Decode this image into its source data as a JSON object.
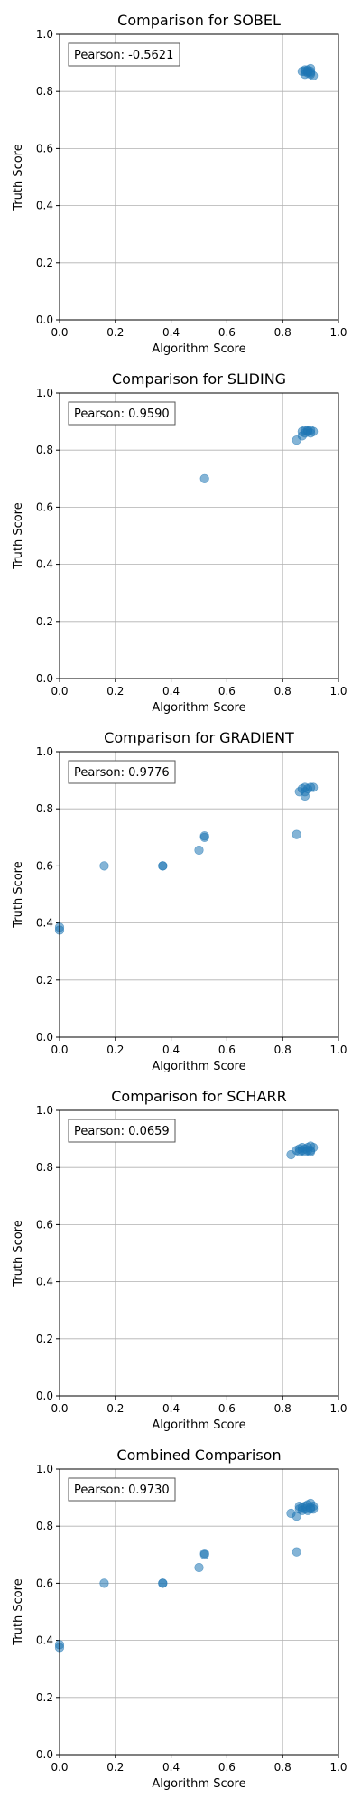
{
  "chart_data": [
    {
      "type": "scatter",
      "title": "Comparison for SOBEL",
      "xlabel": "Algorithm Score",
      "ylabel": "Truth Score",
      "xlim": [
        0,
        1
      ],
      "ylim": [
        0,
        1
      ],
      "xticks": [
        "0.0",
        "0.2",
        "0.4",
        "0.6",
        "0.8",
        "1.0"
      ],
      "yticks": [
        "0.0",
        "0.2",
        "0.4",
        "0.6",
        "0.8",
        "1.0"
      ],
      "grid": true,
      "annotation": "Pearson: -0.5621",
      "annotation_placement": "top-left",
      "point_color": "#1f77b4",
      "points": [
        {
          "x": 0.87,
          "y": 0.87
        },
        {
          "x": 0.88,
          "y": 0.875
        },
        {
          "x": 0.89,
          "y": 0.87
        },
        {
          "x": 0.9,
          "y": 0.88
        },
        {
          "x": 0.88,
          "y": 0.86
        },
        {
          "x": 0.89,
          "y": 0.865
        },
        {
          "x": 0.9,
          "y": 0.86
        },
        {
          "x": 0.91,
          "y": 0.855
        },
        {
          "x": 0.89,
          "y": 0.875
        },
        {
          "x": 0.9,
          "y": 0.87
        },
        {
          "x": 0.88,
          "y": 0.87
        },
        {
          "x": 0.9,
          "y": 0.865
        }
      ]
    },
    {
      "type": "scatter",
      "title": "Comparison for SLIDING",
      "xlabel": "Algorithm Score",
      "ylabel": "Truth Score",
      "xlim": [
        0,
        1
      ],
      "ylim": [
        0,
        1
      ],
      "xticks": [
        "0.0",
        "0.2",
        "0.4",
        "0.6",
        "0.8",
        "1.0"
      ],
      "yticks": [
        "0.0",
        "0.2",
        "0.4",
        "0.6",
        "0.8",
        "1.0"
      ],
      "grid": true,
      "annotation": "Pearson: 0.9590",
      "annotation_placement": "top-left",
      "point_color": "#1f77b4",
      "points": [
        {
          "x": 0.52,
          "y": 0.7
        },
        {
          "x": 0.85,
          "y": 0.835
        },
        {
          "x": 0.87,
          "y": 0.85
        },
        {
          "x": 0.88,
          "y": 0.87
        },
        {
          "x": 0.89,
          "y": 0.865
        },
        {
          "x": 0.9,
          "y": 0.87
        },
        {
          "x": 0.91,
          "y": 0.865
        },
        {
          "x": 0.88,
          "y": 0.86
        },
        {
          "x": 0.89,
          "y": 0.87
        },
        {
          "x": 0.9,
          "y": 0.86
        },
        {
          "x": 0.87,
          "y": 0.865
        }
      ]
    },
    {
      "type": "scatter",
      "title": "Comparison for GRADIENT",
      "xlabel": "Algorithm Score",
      "ylabel": "Truth Score",
      "xlim": [
        0,
        1
      ],
      "ylim": [
        0,
        1
      ],
      "xticks": [
        "0.0",
        "0.2",
        "0.4",
        "0.6",
        "0.8",
        "1.0"
      ],
      "yticks": [
        "0.0",
        "0.2",
        "0.4",
        "0.6",
        "0.8",
        "1.0"
      ],
      "grid": true,
      "annotation": "Pearson: 0.9776",
      "annotation_placement": "top-left",
      "point_color": "#1f77b4",
      "points": [
        {
          "x": 0.0,
          "y": 0.385
        },
        {
          "x": 0.0,
          "y": 0.375
        },
        {
          "x": 0.16,
          "y": 0.6
        },
        {
          "x": 0.37,
          "y": 0.6
        },
        {
          "x": 0.37,
          "y": 0.6
        },
        {
          "x": 0.5,
          "y": 0.655
        },
        {
          "x": 0.52,
          "y": 0.7
        },
        {
          "x": 0.52,
          "y": 0.705
        },
        {
          "x": 0.85,
          "y": 0.71
        },
        {
          "x": 0.88,
          "y": 0.845
        },
        {
          "x": 0.86,
          "y": 0.86
        },
        {
          "x": 0.87,
          "y": 0.87
        },
        {
          "x": 0.88,
          "y": 0.875
        },
        {
          "x": 0.89,
          "y": 0.87
        },
        {
          "x": 0.9,
          "y": 0.875
        },
        {
          "x": 0.91,
          "y": 0.875
        },
        {
          "x": 0.88,
          "y": 0.86
        }
      ]
    },
    {
      "type": "scatter",
      "title": "Comparison for SCHARR",
      "xlabel": "Algorithm Score",
      "ylabel": "Truth Score",
      "xlim": [
        0,
        1
      ],
      "ylim": [
        0,
        1
      ],
      "xticks": [
        "0.0",
        "0.2",
        "0.4",
        "0.6",
        "0.8",
        "1.0"
      ],
      "yticks": [
        "0.0",
        "0.2",
        "0.4",
        "0.6",
        "0.8",
        "1.0"
      ],
      "grid": true,
      "annotation": "Pearson: 0.0659",
      "annotation_placement": "top-left",
      "point_color": "#1f77b4",
      "points": [
        {
          "x": 0.83,
          "y": 0.845
        },
        {
          "x": 0.85,
          "y": 0.86
        },
        {
          "x": 0.86,
          "y": 0.865
        },
        {
          "x": 0.87,
          "y": 0.86
        },
        {
          "x": 0.88,
          "y": 0.865
        },
        {
          "x": 0.89,
          "y": 0.87
        },
        {
          "x": 0.9,
          "y": 0.86
        },
        {
          "x": 0.9,
          "y": 0.875
        },
        {
          "x": 0.91,
          "y": 0.87
        },
        {
          "x": 0.88,
          "y": 0.855
        },
        {
          "x": 0.87,
          "y": 0.87
        },
        {
          "x": 0.86,
          "y": 0.855
        },
        {
          "x": 0.89,
          "y": 0.86
        },
        {
          "x": 0.9,
          "y": 0.855
        }
      ]
    },
    {
      "type": "scatter",
      "title": "Combined Comparison",
      "xlabel": "Algorithm Score",
      "ylabel": "Truth Score",
      "xlim": [
        0,
        1
      ],
      "ylim": [
        0,
        1
      ],
      "xticks": [
        "0.0",
        "0.2",
        "0.4",
        "0.6",
        "0.8",
        "1.0"
      ],
      "yticks": [
        "0.0",
        "0.2",
        "0.4",
        "0.6",
        "0.8",
        "1.0"
      ],
      "grid": true,
      "annotation": "Pearson: 0.9730",
      "annotation_placement": "top-left",
      "point_color": "#1f77b4",
      "points": [
        {
          "x": 0.0,
          "y": 0.385
        },
        {
          "x": 0.0,
          "y": 0.375
        },
        {
          "x": 0.16,
          "y": 0.6
        },
        {
          "x": 0.37,
          "y": 0.6
        },
        {
          "x": 0.37,
          "y": 0.6
        },
        {
          "x": 0.5,
          "y": 0.655
        },
        {
          "x": 0.52,
          "y": 0.7
        },
        {
          "x": 0.52,
          "y": 0.705
        },
        {
          "x": 0.85,
          "y": 0.71
        },
        {
          "x": 0.83,
          "y": 0.845
        },
        {
          "x": 0.85,
          "y": 0.835
        },
        {
          "x": 0.86,
          "y": 0.86
        },
        {
          "x": 0.87,
          "y": 0.865
        },
        {
          "x": 0.88,
          "y": 0.87
        },
        {
          "x": 0.89,
          "y": 0.875
        },
        {
          "x": 0.9,
          "y": 0.88
        },
        {
          "x": 0.91,
          "y": 0.87
        },
        {
          "x": 0.9,
          "y": 0.86
        },
        {
          "x": 0.89,
          "y": 0.855
        },
        {
          "x": 0.88,
          "y": 0.86
        },
        {
          "x": 0.87,
          "y": 0.855
        },
        {
          "x": 0.91,
          "y": 0.86
        },
        {
          "x": 0.86,
          "y": 0.87
        },
        {
          "x": 0.9,
          "y": 0.865
        }
      ]
    }
  ]
}
